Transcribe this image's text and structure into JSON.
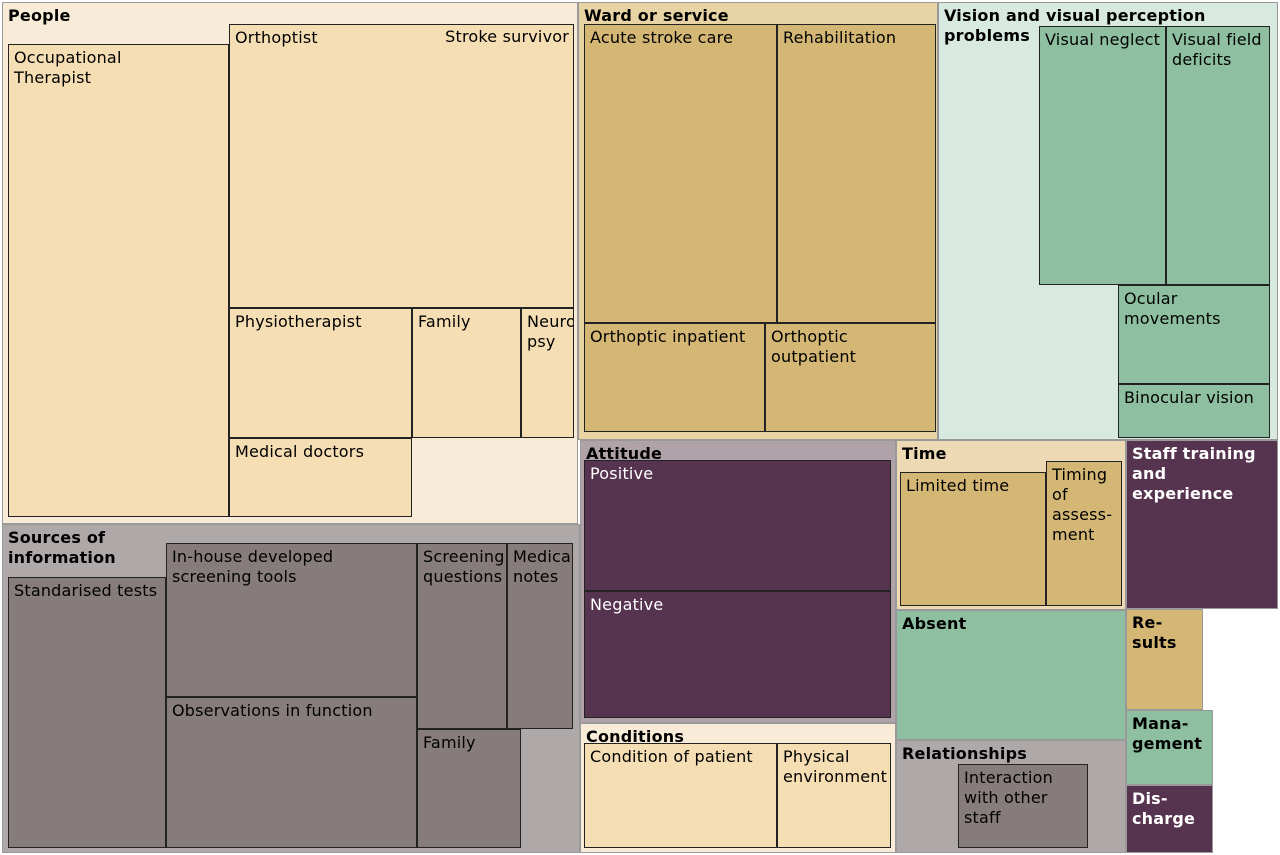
{
  "chart_data": {
    "type": "treemap",
    "title": "",
    "colors": {
      "people_bg": "#F8EBD8",
      "people_cell": "#F5DEB3",
      "ward_bg": "#E8D3A4",
      "ward_cell": "#D4B775",
      "vision_bg": "#D8EAE0",
      "vision_cell": "#8DBFA0",
      "sources_bg": "#AFA8A9",
      "sources_cell": "#857C7B",
      "attitude_bg": "#AFA2A8",
      "attitude_cell": "#56334E",
      "time_bg": "#EDD9B4",
      "time_cell": "#D4B775",
      "conditions_bg": "#F8EBD8",
      "conditions_cell": "#F5DEB3",
      "relationships_bg": "#AFA8A9",
      "relationships_cell": "#857C7B",
      "absent": "#8DBFA0",
      "staff": "#56334E",
      "results": "#D4B775",
      "management": "#8DBFA0",
      "discharge": "#56334E"
    },
    "groups": [
      {
        "name": "People",
        "children": [
          "Occupational\nTherapist",
          "Orthoptist",
          "Stroke survivor",
          "Physiotherapist",
          "Family",
          "Neuro\npsy",
          "Medical doctors"
        ]
      },
      {
        "name": "Ward or service",
        "children": [
          "Acute stroke care",
          "Rehabilitation",
          "Orthoptic inpatient",
          "Orthoptic outpatient"
        ]
      },
      {
        "name": "Vision and visual perception\nproblems",
        "children": [
          "Visual neglect",
          "Visual field\ndeficits",
          "Ocular\nmovements",
          "Binocular vision"
        ]
      },
      {
        "name": "Sources of\ninformation",
        "children": [
          "Standarised tests",
          "In-house developed\nscreening tools",
          "Screening\nquestions",
          "Medical\nnotes",
          "Observations in function",
          "Family"
        ]
      },
      {
        "name": "Attitude",
        "children": [
          "Positive",
          "Negative"
        ]
      },
      {
        "name": "Time",
        "children": [
          "Limited time",
          "Timing\nof\nassess-\nment"
        ]
      },
      {
        "name": "Staff training\nand\nexperience",
        "children": []
      },
      {
        "name": "Absent",
        "children": []
      },
      {
        "name": "Re-\nsults",
        "children": []
      },
      {
        "name": "Conditions",
        "children": [
          "Condition of patient",
          "Physical\nenvironment"
        ]
      },
      {
        "name": "Relationships",
        "children": [
          "Interaction\nwith other\nstaff"
        ]
      },
      {
        "name": "Mana-\ngement",
        "children": []
      },
      {
        "name": "Dis-\ncharge",
        "children": []
      }
    ]
  }
}
